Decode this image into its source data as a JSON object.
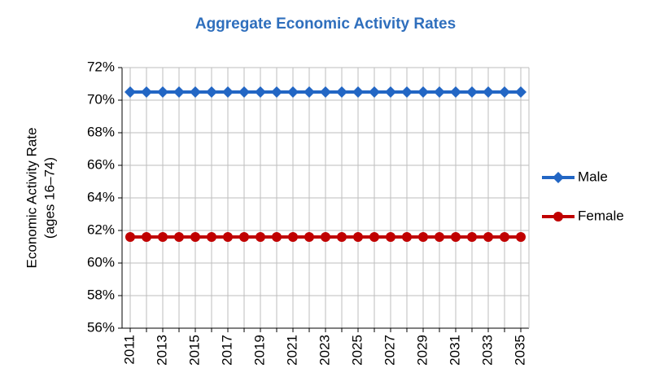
{
  "chart_data": {
    "type": "line",
    "title": "Aggregate Economic Activity Rates",
    "y_label": [
      "Economic Activity Rate",
      "(ages  16–74)"
    ],
    "categories": [
      "2011",
      null,
      "2013",
      null,
      "2015",
      null,
      "2017",
      null,
      "2019",
      null,
      "2021",
      null,
      "2023",
      null,
      "2025",
      null,
      "2027",
      null,
      "2029",
      null,
      "2031",
      null,
      "2033",
      null,
      "2035"
    ],
    "series": [
      {
        "name": "Male",
        "color": "#2266c4",
        "marker": "diamond",
        "values": [
          70.5,
          70.5,
          70.5,
          70.5,
          70.5,
          70.5,
          70.5,
          70.5,
          70.5,
          70.5,
          70.5,
          70.5,
          70.5,
          70.5,
          70.5,
          70.5,
          70.5,
          70.5,
          70.5,
          70.5,
          70.5,
          70.5,
          70.5,
          70.5,
          70.5
        ]
      },
      {
        "name": "Female",
        "color": "#c00000",
        "marker": "circle",
        "values": [
          61.6,
          61.6,
          61.6,
          61.6,
          61.6,
          61.6,
          61.6,
          61.6,
          61.6,
          61.6,
          61.6,
          61.6,
          61.6,
          61.6,
          61.6,
          61.6,
          61.6,
          61.6,
          61.6,
          61.6,
          61.6,
          61.6,
          61.6,
          61.6,
          61.6
        ]
      }
    ],
    "ylim": [
      56,
      72
    ],
    "yticks": [
      {
        "value": 56,
        "label": "56%"
      },
      {
        "value": 58,
        "label": "58%"
      },
      {
        "value": 60,
        "label": "60%"
      },
      {
        "value": 62,
        "label": "62%"
      },
      {
        "value": 64,
        "label": "64%"
      },
      {
        "value": 66,
        "label": "66%"
      },
      {
        "value": 68,
        "label": "68%"
      },
      {
        "value": 70,
        "label": "70%"
      },
      {
        "value": 72,
        "label": "72%"
      }
    ],
    "grid": true,
    "legend": "right"
  }
}
